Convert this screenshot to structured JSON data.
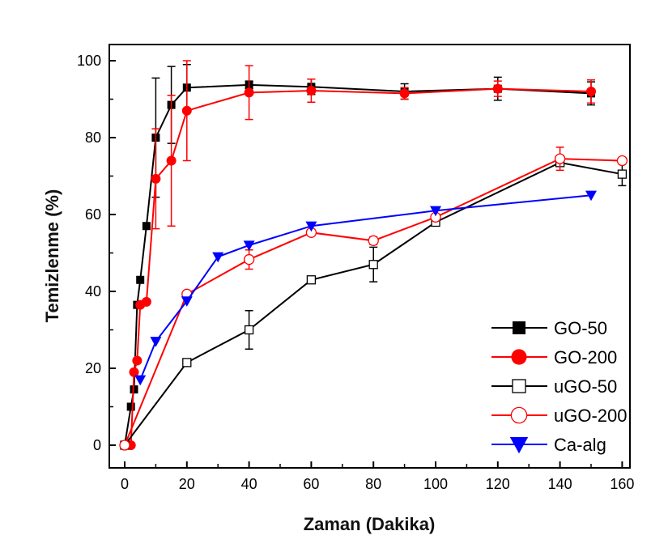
{
  "chart_data": {
    "type": "line",
    "xlabel": "Zaman (Dakika)",
    "ylabel": "Temizlenme (%)",
    "xlim": [
      -3,
      168
    ],
    "ylim": [
      -5,
      105
    ],
    "xticks": [
      0,
      20,
      40,
      60,
      80,
      100,
      120,
      140,
      160
    ],
    "yticks": [
      0,
      20,
      40,
      60,
      80,
      100
    ],
    "legend_position": "bottom-right",
    "grid": false,
    "series": [
      {
        "name": "GO-50",
        "color": "#000000",
        "marker": "square-filled",
        "x": [
          0,
          2,
          3,
          4,
          5,
          7,
          10,
          15,
          20,
          40,
          60,
          90,
          120,
          150
        ],
        "y": [
          0,
          10,
          14.5,
          36.5,
          43,
          57,
          80,
          88.5,
          93,
          93.7,
          93.2,
          92,
          92.7,
          91.5
        ],
        "err": [
          0,
          0,
          0,
          0,
          0,
          0,
          15.5,
          10,
          6,
          1,
          2,
          2,
          3,
          3
        ]
      },
      {
        "name": "GO-200",
        "color": "#ff0000",
        "marker": "circle-filled",
        "x": [
          2,
          3,
          4,
          5,
          7,
          10,
          15,
          20,
          40,
          60,
          90,
          120,
          150
        ],
        "y": [
          0,
          19,
          22,
          36.5,
          37.3,
          69.3,
          74,
          87,
          91.7,
          92.2,
          91.5,
          92.7,
          92
        ],
        "err": [
          0,
          0,
          0,
          0,
          0,
          13,
          17,
          13,
          7,
          3,
          1.5,
          2,
          3
        ]
      },
      {
        "name": "uGO-50",
        "color": "#000000",
        "marker": "square-open",
        "x": [
          0,
          20,
          40,
          60,
          80,
          100,
          140,
          160
        ],
        "y": [
          0,
          21.5,
          30,
          43,
          47,
          58,
          73.5,
          70.5
        ],
        "err": [
          0,
          0,
          5,
          0,
          4.5,
          0,
          0,
          3
        ]
      },
      {
        "name": "uGO-200",
        "color": "#ff0000",
        "marker": "circle-open",
        "x": [
          0,
          20,
          40,
          60,
          80,
          100,
          140,
          160
        ],
        "y": [
          0,
          39.3,
          48.3,
          55.3,
          53.2,
          59.3,
          74.5,
          74
        ],
        "err": [
          0,
          0,
          2.5,
          0,
          1,
          0,
          3,
          0
        ]
      },
      {
        "name": "Ca-alg",
        "color": "#0000ff",
        "marker": "triangle-down",
        "x": [
          5,
          10,
          20,
          30,
          40,
          60,
          100,
          150
        ],
        "y": [
          17,
          27,
          37.5,
          49,
          52,
          57,
          61,
          65
        ],
        "err": [
          0,
          0,
          0,
          0,
          0,
          0,
          0,
          0
        ]
      }
    ]
  }
}
